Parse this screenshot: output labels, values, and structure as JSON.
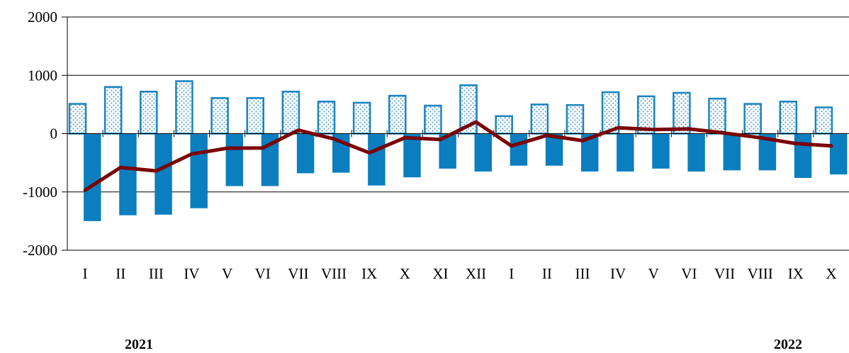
{
  "chart_data": {
    "type": "bar",
    "title": "",
    "xlabel": "",
    "ylabel": "",
    "ylim": [
      -2000,
      2000
    ],
    "yticks": [
      2000,
      1000,
      0,
      -1000,
      -2000
    ],
    "grid": "horizontal",
    "categories": [
      "I",
      "II",
      "III",
      "IV",
      "V",
      "VI",
      "VII",
      "VIII",
      "IX",
      "X",
      "XI",
      "XII",
      "I",
      "II",
      "III",
      "IV",
      "V",
      "VI",
      "VII",
      "VIII",
      "IX",
      "X"
    ],
    "year_labels": [
      "2021",
      "2022"
    ],
    "series": [
      {
        "type": "bar",
        "style": "dotted",
        "values": [
          510,
          800,
          720,
          900,
          610,
          610,
          720,
          550,
          530,
          650,
          480,
          830,
          300,
          500,
          490,
          710,
          640,
          700,
          600,
          510,
          550,
          450
        ]
      },
      {
        "type": "bar",
        "style": "solid",
        "values": [
          -1500,
          -1400,
          -1390,
          -1280,
          -900,
          -900,
          -680,
          -670,
          -890,
          -750,
          -600,
          -650,
          -550,
          -550,
          -650,
          -650,
          -600,
          -650,
          -630,
          -630,
          -760,
          -700
        ]
      },
      {
        "type": "line",
        "values": [
          -970,
          -580,
          -640,
          -350,
          -250,
          -245,
          60,
          -90,
          -330,
          -70,
          -100,
          200,
          -210,
          -30,
          -120,
          100,
          70,
          80,
          10,
          -70,
          -170,
          -210
        ]
      }
    ],
    "colors": {
      "dotted_bar_stroke": "#1a83c0",
      "dotted_bar_fill": "#ffffff",
      "dotted_bar_dots": "#5aa6d6",
      "solid_bar": "#0a7ebf",
      "line": "#7a0000",
      "grid": "#000000"
    }
  }
}
